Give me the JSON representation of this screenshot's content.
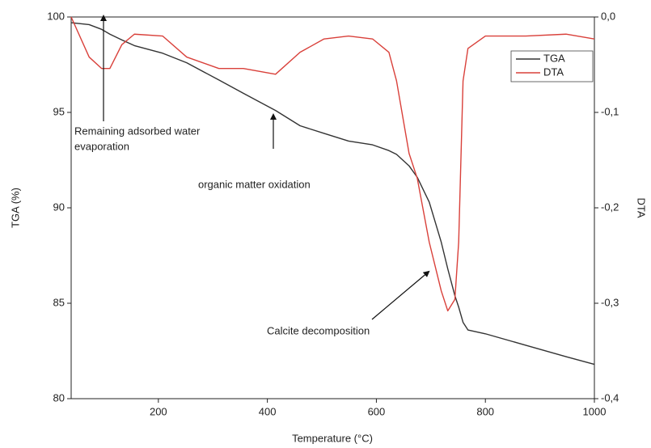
{
  "chart_data": {
    "type": "line",
    "x_label": "Temperature (°C)",
    "y_label": "TGA (%)",
    "y2_label": "DTA",
    "x": [
      40,
      73,
      96,
      111,
      133,
      156,
      208,
      252,
      311,
      356,
      415,
      460,
      504,
      549,
      593,
      623,
      637,
      660,
      675,
      697,
      719,
      731,
      744,
      751,
      759,
      768,
      800,
      874,
      948,
      1000
    ],
    "series": [
      {
        "name": "TGA",
        "color": "#333333",
        "values": [
          99.7,
          99.6,
          99.35,
          99.1,
          98.8,
          98.5,
          98.1,
          97.6,
          96.7,
          96.0,
          95.1,
          94.3,
          93.9,
          93.5,
          93.3,
          93.0,
          92.8,
          92.2,
          91.6,
          90.3,
          88.2,
          86.8,
          85.4,
          84.8,
          84.0,
          83.6,
          83.4,
          82.8,
          82.2,
          81.8
        ]
      },
      {
        "name": "DTA",
        "color": "#d9403a",
        "axis": "y2",
        "values": [
          0.0,
          -0.042,
          -0.054,
          -0.054,
          -0.029,
          -0.018,
          -0.02,
          -0.042,
          -0.054,
          -0.054,
          -0.06,
          -0.037,
          -0.023,
          -0.02,
          -0.023,
          -0.037,
          -0.067,
          -0.143,
          -0.169,
          -0.236,
          -0.287,
          -0.308,
          -0.296,
          -0.236,
          -0.067,
          -0.033,
          -0.02,
          -0.02,
          -0.018,
          -0.023
        ]
      }
    ],
    "xlim": [
      40,
      1000
    ],
    "xticks": [
      200,
      400,
      600,
      800,
      1000
    ],
    "ylim": [
      80,
      100
    ],
    "yticks": [
      80,
      85,
      90,
      95,
      100
    ],
    "y2lim": [
      -0.4,
      0
    ],
    "y2ticks": [
      {
        "value": -0.4,
        "label": "-0,4"
      },
      {
        "value": -0.3,
        "label": "-0,3"
      },
      {
        "value": -0.2,
        "label": "-0,2"
      },
      {
        "value": -0.1,
        "label": "-0,1"
      },
      {
        "value": 0,
        "label": "0,0"
      }
    ],
    "legend": "top-right",
    "grid": false,
    "annotations": [
      {
        "text": [
          "Remaining adsorbed water",
          "evaporation"
        ]
      },
      {
        "text": [
          "organic matter oxidation"
        ]
      },
      {
        "text": [
          "Calcite decomposition"
        ]
      }
    ]
  }
}
